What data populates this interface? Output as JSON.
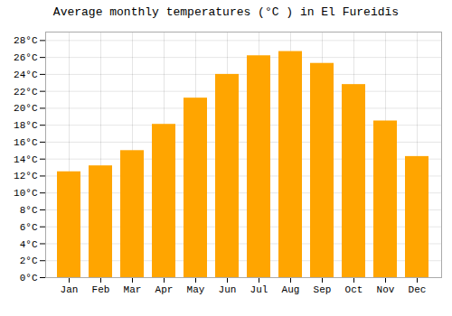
{
  "chart_data": {
    "type": "bar",
    "title": "Average monthly temperatures (°C ) in El Fureidīs",
    "categories": [
      "Jan",
      "Feb",
      "Mar",
      "Apr",
      "May",
      "Jun",
      "Jul",
      "Aug",
      "Sep",
      "Oct",
      "Nov",
      "Dec"
    ],
    "values": [
      12.5,
      13.2,
      15.0,
      18.1,
      21.2,
      24.0,
      26.2,
      26.7,
      25.3,
      22.8,
      18.5,
      14.3
    ],
    "color": "#FFA500",
    "ylim": [
      0,
      29
    ],
    "yticks": [
      {
        "value": 0,
        "label": "0°C"
      },
      {
        "value": 2,
        "label": "2°C"
      },
      {
        "value": 4,
        "label": "4°C"
      },
      {
        "value": 6,
        "label": "6°C"
      },
      {
        "value": 8,
        "label": "8°C"
      },
      {
        "value": 10,
        "label": "10°C"
      },
      {
        "value": 12,
        "label": "12°C"
      },
      {
        "value": 14,
        "label": "14°C"
      },
      {
        "value": 16,
        "label": "16°C"
      },
      {
        "value": 18,
        "label": "18°C"
      },
      {
        "value": 20,
        "label": "20°C"
      },
      {
        "value": 22,
        "label": "22°C"
      },
      {
        "value": 24,
        "label": "24°C"
      },
      {
        "value": 26,
        "label": "26°C"
      },
      {
        "value": 28,
        "label": "28°C"
      }
    ],
    "grid": true
  }
}
